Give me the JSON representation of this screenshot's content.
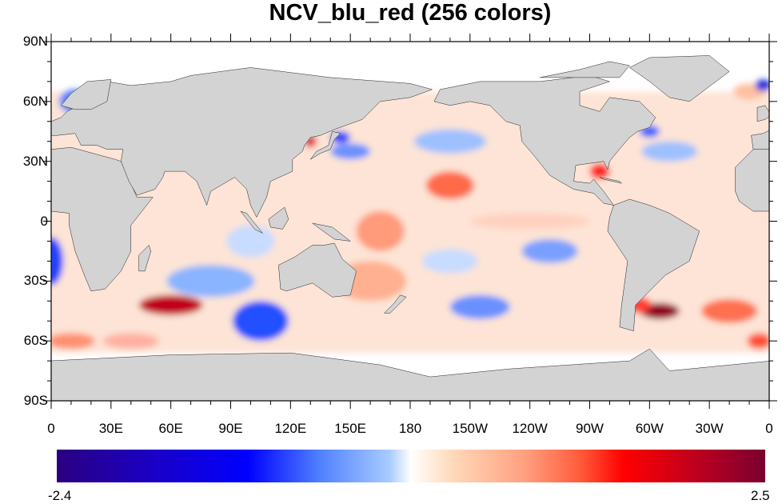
{
  "title": "NCV_blu_red (256 colors)",
  "lat_labels": [
    "90N",
    "60N",
    "30N",
    "0",
    "30S",
    "60S",
    "90S"
  ],
  "lat_values": [
    90,
    60,
    30,
    0,
    -30,
    -60,
    -90
  ],
  "lon_labels": [
    "0",
    "30E",
    "60E",
    "90E",
    "120E",
    "150E",
    "180",
    "150W",
    "120W",
    "90W",
    "60W",
    "30W",
    "0"
  ],
  "colorbar": {
    "min_label": "-2.4",
    "max_label": "2.5",
    "min": -2.4,
    "max": 2.5
  },
  "colors": {
    "land": "#d3d3d3",
    "ocean_missing": "#ffffff"
  }
}
